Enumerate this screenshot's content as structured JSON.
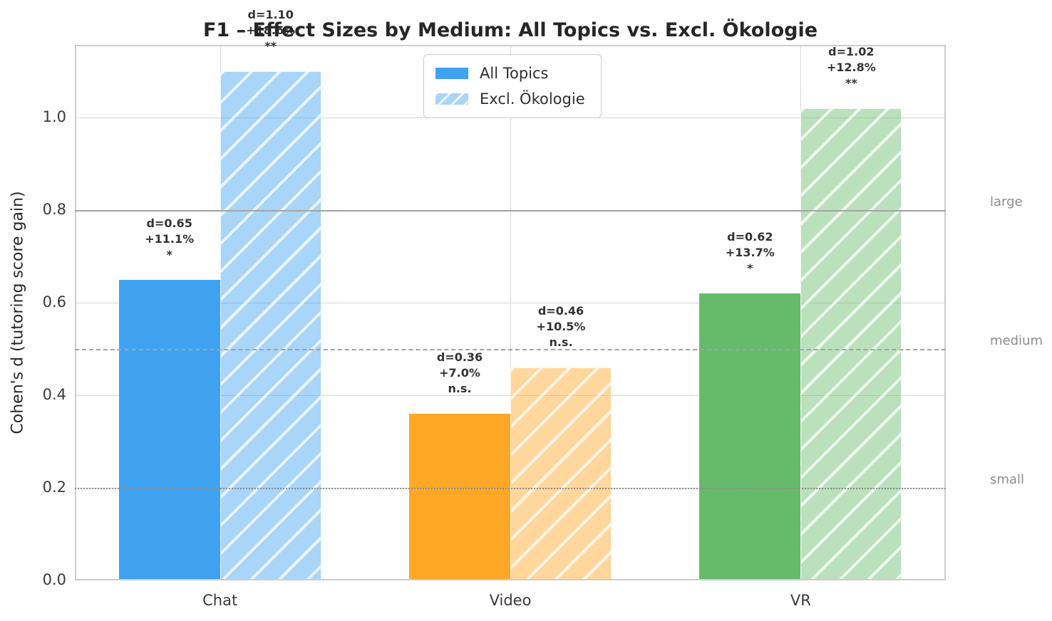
{
  "figure": {
    "title": "F1 – Effect Sizes by Medium: All Topics vs. Excl. Ökologie"
  },
  "chart_data": {
    "type": "bar",
    "title": "F1 – Effect Sizes by Medium: All Topics vs. Excl. Ökologie",
    "ylabel": "Cohen's d (tutoring score gain)",
    "categories": [
      "Chat",
      "Video",
      "VR"
    ],
    "category_colors": [
      "#3FA2F0",
      "#FFA726",
      "#66BB6A"
    ],
    "series": [
      {
        "name": "All Topics",
        "style": "solid",
        "values": [
          0.65,
          0.36,
          0.62
        ],
        "annotations": [
          {
            "d": "d=0.65",
            "pct": "+11.1%",
            "sig": "*"
          },
          {
            "d": "d=0.36",
            "pct": "+7.0%",
            "sig": "n.s."
          },
          {
            "d": "d=0.62",
            "pct": "+13.7%",
            "sig": "*"
          }
        ]
      },
      {
        "name": "Excl. Ökologie",
        "style": "hatched",
        "values": [
          1.1,
          0.46,
          1.02
        ],
        "annotations": [
          {
            "d": "d=1.10",
            "pct": "+18.6%",
            "sig": "**"
          },
          {
            "d": "d=0.46",
            "pct": "+10.5%",
            "sig": "n.s."
          },
          {
            "d": "d=1.02",
            "pct": "+12.8%",
            "sig": "**"
          }
        ]
      }
    ],
    "yticks": [
      "0.0",
      "0.2",
      "0.4",
      "0.6",
      "0.8",
      "1.0"
    ],
    "ylim": [
      0,
      1.157
    ],
    "grid": true,
    "legend": {
      "position": "top-center",
      "entries": [
        "All Topics",
        "Excl. Ökologie"
      ]
    },
    "reference_lines": [
      {
        "value": 0.8,
        "label": "large",
        "line_style": "solid"
      },
      {
        "value": 0.5,
        "label": "medium",
        "line_style": "dashed"
      },
      {
        "value": 0.2,
        "label": "small",
        "line_style": "dotted"
      }
    ]
  }
}
